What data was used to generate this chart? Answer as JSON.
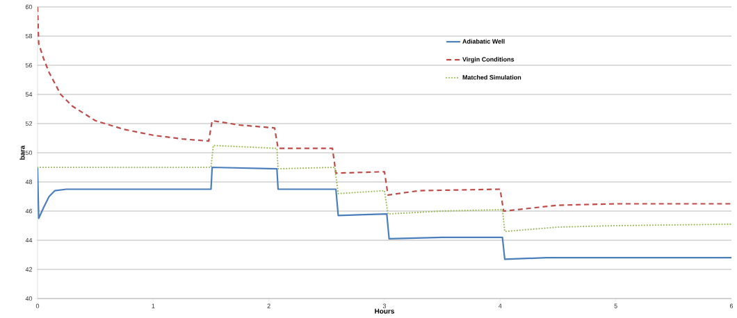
{
  "chart_data": {
    "type": "line",
    "xlabel": "Hours",
    "ylabel": "bara",
    "xlim": [
      0,
      6
    ],
    "ylim": [
      40,
      60
    ],
    "xticks": [
      0,
      1,
      2,
      3,
      4,
      5,
      6
    ],
    "yticks": [
      40,
      42,
      44,
      46,
      48,
      50,
      52,
      54,
      56,
      58,
      60
    ],
    "grid": "y",
    "legend": "top right",
    "marker": "none",
    "series": [
      {
        "name": "Adiabatic Well",
        "color": "#4a7ebb",
        "line_style": "solid",
        "x": [
          0,
          0.01,
          0.05,
          0.1,
          0.15,
          0.25,
          1.5,
          1.51,
          2.07,
          2.08,
          2.58,
          2.6,
          3.02,
          3.04,
          3.5,
          4.02,
          4.04,
          4.4,
          6
        ],
        "values": [
          49,
          45.5,
          46.2,
          47.0,
          47.4,
          47.5,
          47.5,
          49.0,
          48.9,
          47.5,
          47.5,
          45.7,
          45.8,
          44.1,
          44.2,
          44.2,
          42.7,
          42.8,
          42.8
        ]
      },
      {
        "name": "Virgin Conditions",
        "color": "#be4b48",
        "line_style": "dashed",
        "x": [
          0,
          0.01,
          0.05,
          0.1,
          0.2,
          0.3,
          0.5,
          0.75,
          1,
          1.25,
          1.48,
          1.51,
          1.75,
          2.05,
          2.08,
          2.55,
          2.58,
          3.0,
          3.03,
          3.3,
          4.0,
          4.03,
          4.5,
          5,
          6
        ],
        "values": [
          60,
          57.5,
          56.5,
          55.5,
          54.0,
          53.2,
          52.2,
          51.6,
          51.2,
          50.95,
          50.8,
          52.2,
          51.9,
          51.7,
          50.3,
          50.3,
          48.6,
          48.7,
          47.1,
          47.4,
          47.5,
          46.0,
          46.4,
          46.5,
          46.5
        ]
      },
      {
        "name": "Matched Simulation",
        "color": "#98b954",
        "line_style": "dotted",
        "x": [
          0,
          1.5,
          1.52,
          2.07,
          2.08,
          2.57,
          2.6,
          3.0,
          3.03,
          3.5,
          4.02,
          4.04,
          4.5,
          5,
          6
        ],
        "values": [
          49,
          49,
          50.5,
          50.3,
          48.9,
          49.0,
          47.2,
          47.4,
          45.8,
          46.0,
          46.1,
          44.6,
          44.9,
          45.0,
          45.1
        ]
      }
    ]
  }
}
